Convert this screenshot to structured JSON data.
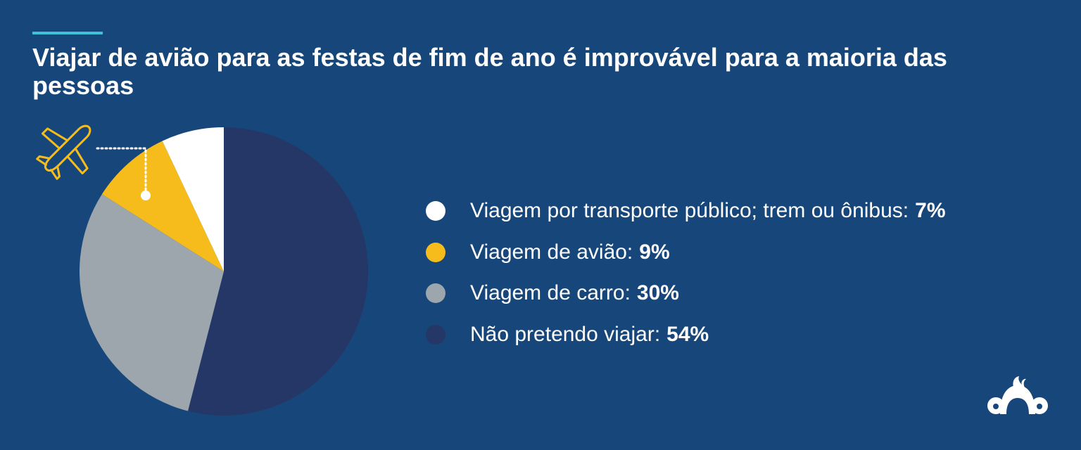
{
  "header": {
    "title": "Viajar de avião para as festas de fim de ano é improvável para a maioria das pessoas"
  },
  "chart_data": {
    "type": "pie",
    "title": "Viajar de avião para as festas de fim de ano é improvável para a maioria das pessoas",
    "slices": [
      {
        "label": "Não pretendo viajar:",
        "value_text": "54%",
        "value": 54,
        "color": "#243766"
      },
      {
        "label": "Viagem de carro:",
        "value_text": "30%",
        "value": 30,
        "color": "#9ea6ad"
      },
      {
        "label": "Viagem de avião:",
        "value_text": "9%",
        "value": 9,
        "color": "#f5bc1c"
      },
      {
        "label": "Viagem por transporte público; trem ou ônibus:",
        "value_text": "7%",
        "value": 7,
        "color": "#ffffff"
      }
    ],
    "legend_order": [
      3,
      2,
      1,
      0
    ],
    "legend_placement": "right",
    "callout": {
      "icon": "airplane-icon",
      "target_slice": 2
    }
  },
  "colors": {
    "background": "#17477a",
    "accent": "#3fc1d9",
    "icon": "#f5bc1c"
  },
  "logo": {
    "icon": "surveymonkey-logo-icon"
  }
}
